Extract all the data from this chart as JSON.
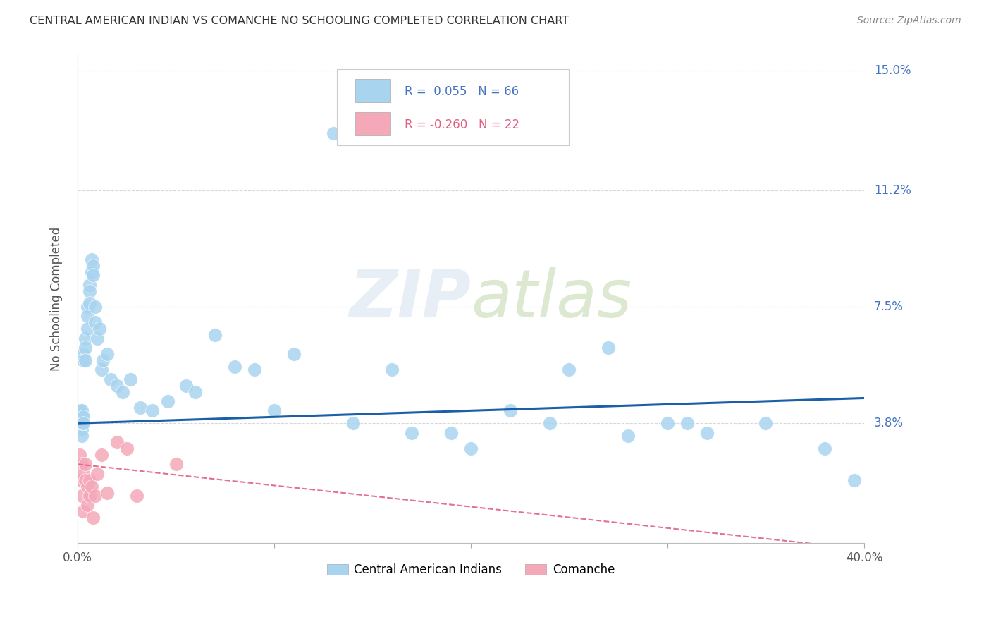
{
  "title": "CENTRAL AMERICAN INDIAN VS COMANCHE NO SCHOOLING COMPLETED CORRELATION CHART",
  "source": "Source: ZipAtlas.com",
  "ylabel": "No Schooling Completed",
  "watermark": "ZIPatlas",
  "xlim": [
    0.0,
    0.4
  ],
  "ylim": [
    0.0,
    0.155
  ],
  "xtick_pos": [
    0.0,
    0.1,
    0.2,
    0.3,
    0.4
  ],
  "xtick_labels": [
    "0.0%",
    "",
    "",
    "",
    "40.0%"
  ],
  "ytick_labels_right": [
    "3.8%",
    "7.5%",
    "11.2%",
    "15.0%"
  ],
  "ytick_vals_right": [
    0.038,
    0.075,
    0.112,
    0.15
  ],
  "legend1_label": "Central American Indians",
  "legend2_label": "Comanche",
  "R1": 0.055,
  "N1": 66,
  "R2": -0.26,
  "N2": 22,
  "blue_color": "#a8d4f0",
  "pink_color": "#f4a8b8",
  "line_blue": "#1a5fa8",
  "line_pink": "#e06080",
  "background_color": "#ffffff",
  "grid_color": "#d8d8d8",
  "blue_x": [
    0.001,
    0.001,
    0.001,
    0.001,
    0.001,
    0.002,
    0.002,
    0.002,
    0.002,
    0.002,
    0.002,
    0.003,
    0.003,
    0.003,
    0.003,
    0.004,
    0.004,
    0.004,
    0.005,
    0.005,
    0.005,
    0.006,
    0.006,
    0.006,
    0.007,
    0.007,
    0.008,
    0.008,
    0.009,
    0.009,
    0.01,
    0.011,
    0.012,
    0.013,
    0.015,
    0.017,
    0.02,
    0.023,
    0.027,
    0.032,
    0.038,
    0.046,
    0.055,
    0.07,
    0.09,
    0.11,
    0.14,
    0.16,
    0.19,
    0.22,
    0.25,
    0.27,
    0.3,
    0.32,
    0.35,
    0.38,
    0.395,
    0.06,
    0.08,
    0.1,
    0.13,
    0.17,
    0.2,
    0.24,
    0.28,
    0.31
  ],
  "blue_y": [
    0.038,
    0.04,
    0.038,
    0.042,
    0.036,
    0.04,
    0.038,
    0.042,
    0.036,
    0.034,
    0.038,
    0.06,
    0.058,
    0.04,
    0.038,
    0.065,
    0.062,
    0.058,
    0.075,
    0.072,
    0.068,
    0.082,
    0.08,
    0.076,
    0.09,
    0.086,
    0.088,
    0.085,
    0.075,
    0.07,
    0.065,
    0.068,
    0.055,
    0.058,
    0.06,
    0.052,
    0.05,
    0.048,
    0.052,
    0.043,
    0.042,
    0.045,
    0.05,
    0.066,
    0.055,
    0.06,
    0.038,
    0.055,
    0.035,
    0.042,
    0.055,
    0.062,
    0.038,
    0.035,
    0.038,
    0.03,
    0.02,
    0.048,
    0.056,
    0.042,
    0.13,
    0.035,
    0.03,
    0.038,
    0.034,
    0.038
  ],
  "pink_x": [
    0.001,
    0.001,
    0.002,
    0.002,
    0.003,
    0.003,
    0.004,
    0.004,
    0.005,
    0.005,
    0.006,
    0.006,
    0.007,
    0.008,
    0.009,
    0.01,
    0.012,
    0.02,
    0.03,
    0.05,
    0.025,
    0.015
  ],
  "pink_y": [
    0.028,
    0.02,
    0.025,
    0.015,
    0.022,
    0.01,
    0.02,
    0.025,
    0.018,
    0.012,
    0.015,
    0.02,
    0.018,
    0.008,
    0.015,
    0.022,
    0.028,
    0.032,
    0.015,
    0.025,
    0.03,
    0.016
  ]
}
